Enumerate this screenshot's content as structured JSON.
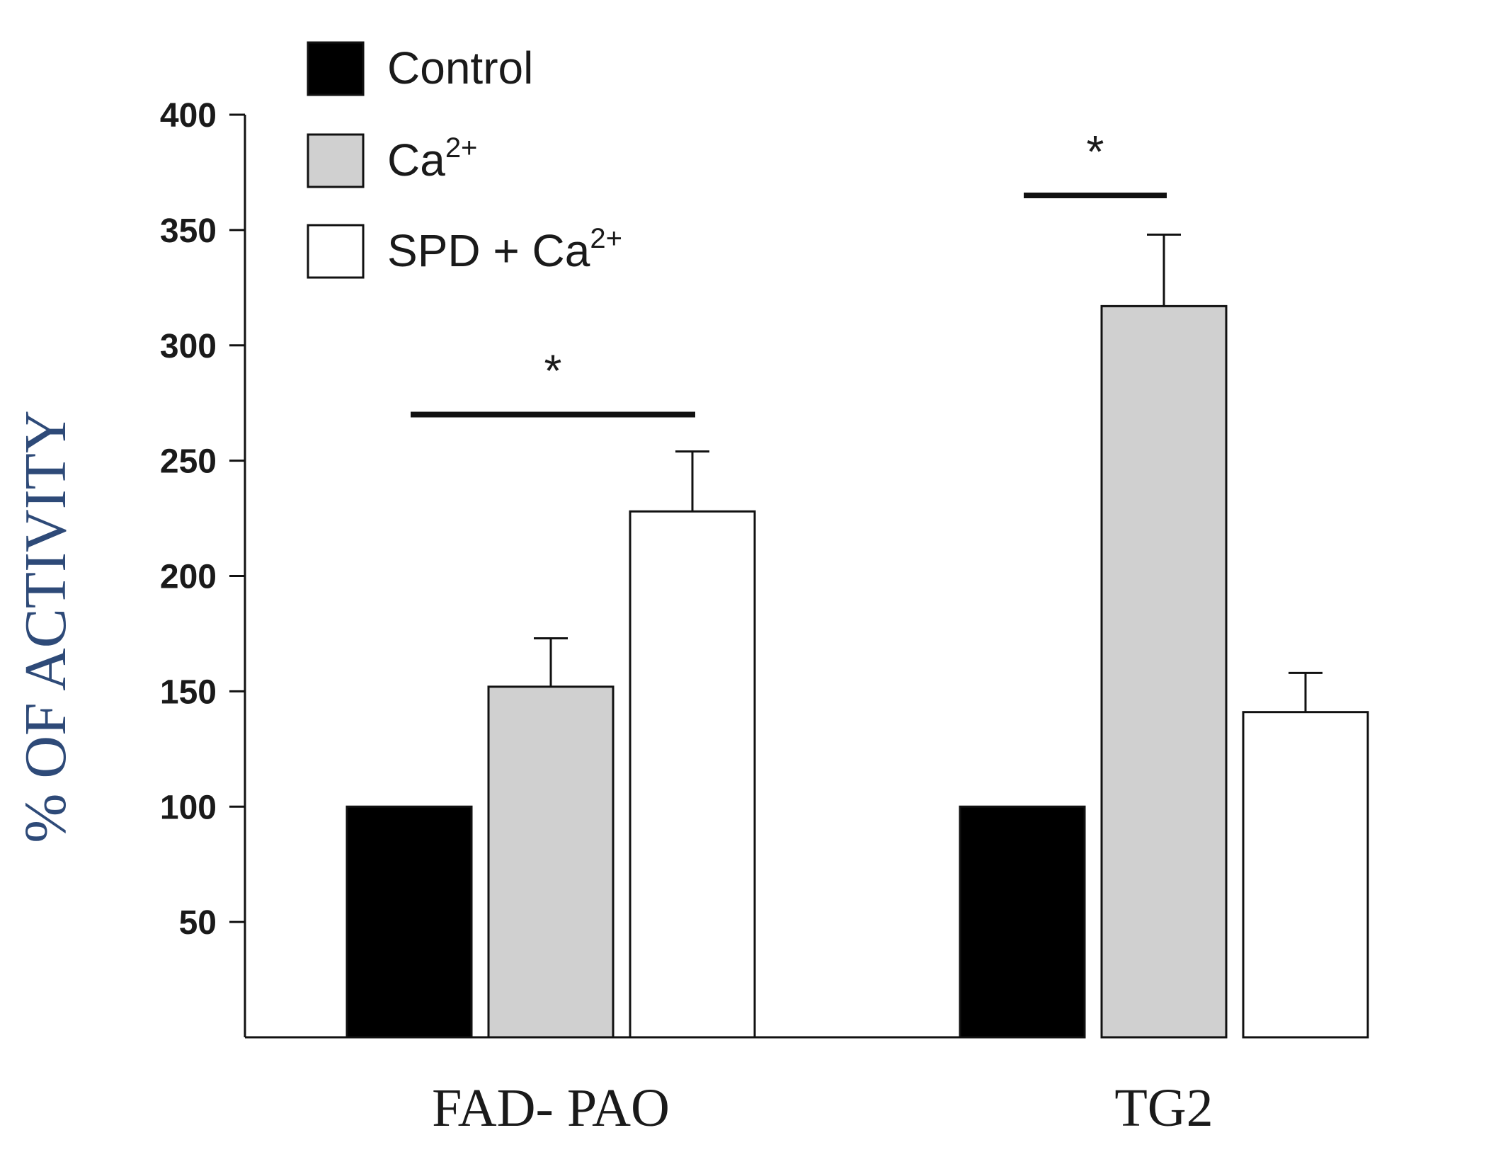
{
  "chart_data": {
    "type": "bar",
    "title": "",
    "xlabel": "",
    "ylabel": "% OF ACTIVITY",
    "ylim": [
      0,
      400
    ],
    "yticks": [
      50,
      100,
      150,
      200,
      250,
      300,
      350,
      400
    ],
    "categories": [
      "FAD- PAO",
      "TG2"
    ],
    "series": [
      {
        "name": "Control",
        "values": [
          100,
          100
        ],
        "errors": [
          0,
          0
        ],
        "color": "#000000"
      },
      {
        "name": "Ca",
        "name_sup": "2+",
        "values": [
          152,
          317
        ],
        "errors": [
          21,
          31
        ],
        "color": "#d0d0d0"
      },
      {
        "name": "SPD + Ca",
        "name_sup": "2+",
        "values": [
          228,
          141
        ],
        "errors": [
          26,
          17
        ],
        "color": "#ffffff"
      }
    ],
    "significance": [
      {
        "category": "FAD- PAO",
        "from_series": 0,
        "to_series": 2,
        "marker": "*",
        "level": 270
      },
      {
        "category": "TG2",
        "from_series": 0,
        "to_series": 1,
        "marker": "*",
        "level": 365
      }
    ],
    "legend_position": "top-left",
    "grid": false
  }
}
